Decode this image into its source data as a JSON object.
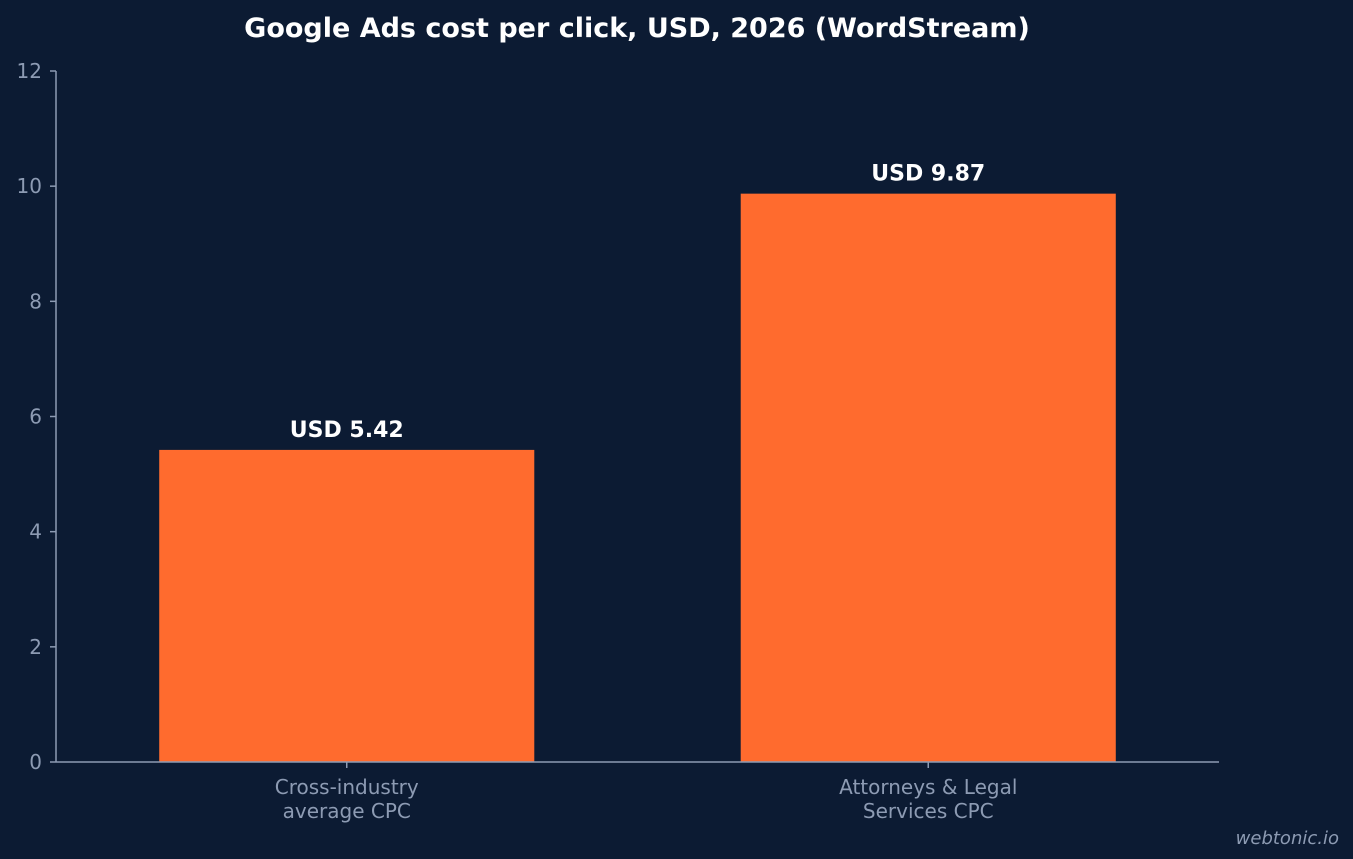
{
  "chart_data": {
    "type": "bar",
    "title": "Google Ads cost per click, USD, 2026 (WordStream)",
    "categories": [
      [
        "Cross-industry",
        "average CPC"
      ],
      [
        "Attorneys & Legal",
        "Services CPC"
      ]
    ],
    "values": [
      5.42,
      9.87
    ],
    "data_labels": [
      "USD 5.42",
      "USD 9.87"
    ],
    "xlabel": "",
    "ylabel": "",
    "ylim": [
      0,
      12
    ],
    "yticks": [
      0,
      2,
      4,
      6,
      8,
      10,
      12
    ],
    "grid": false,
    "legend": "none",
    "colors": {
      "background": "#0c1b33",
      "bar": "#ff6b2e",
      "axis": "#8d9bb3",
      "label": "#ffffff"
    }
  },
  "watermark": "webtonic.io"
}
